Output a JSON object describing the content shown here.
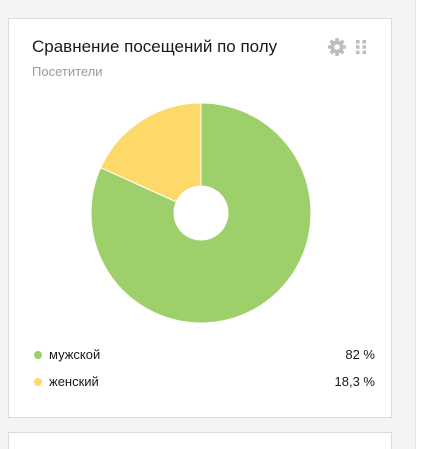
{
  "widget": {
    "title": "Сравнение посещений по полу",
    "subtitle": "Посетители",
    "gear_icon": "gear-icon",
    "drag_icon": "drag-handle-icon"
  },
  "chart_data": {
    "type": "pie",
    "donut": true,
    "title": "Сравнение посещений по полу",
    "subtitle": "Посетители",
    "start_angle_deg": 0,
    "direction": "clockwise",
    "categories": [
      "мужской",
      "женский"
    ],
    "values": [
      82,
      18.3
    ],
    "value_labels": [
      "82 %",
      "18,3 %"
    ],
    "colors": [
      "#9dcf6a",
      "#fdd96a"
    ],
    "legend_placement": "bottom"
  },
  "legend": [
    {
      "label": "мужской",
      "value": "82 %",
      "color": "#9dcf6a"
    },
    {
      "label": "женский",
      "value": "18,3 %",
      "color": "#fdd96a"
    }
  ]
}
